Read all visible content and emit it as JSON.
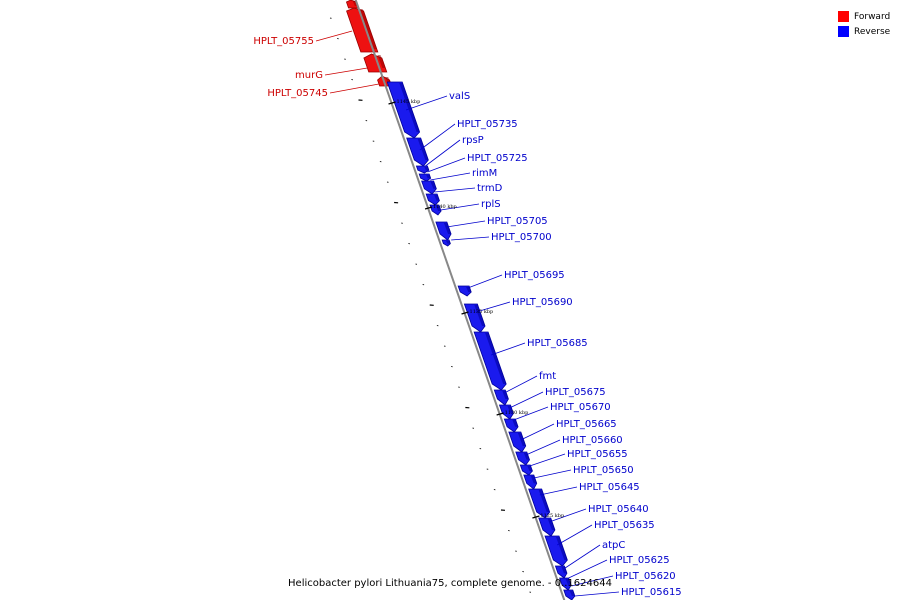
{
  "legend": {
    "forward": {
      "label": "Forward",
      "color": "#ff0000"
    },
    "reverse": {
      "label": "Reverse",
      "color": "#0000ff"
    }
  },
  "caption": "Helicobacter pylori Lithuania75, complete genome. - 0..1624644",
  "colors": {
    "forward_fill": "#ee1111",
    "forward_dark": "#990000",
    "reverse_fill": "#1a1aee",
    "reverse_dark": "#00009a",
    "forward_text": "#cc0000",
    "reverse_text": "#0000cc",
    "backbone": "#888888"
  },
  "ticks": [
    "1145 kbp",
    "1140 kbp",
    "1135 kbp",
    "1130 kbp",
    "1125 kbp"
  ],
  "genes": {
    "forward": [
      "HPLT_05755",
      "murG",
      "HPLT_05745"
    ],
    "reverse": [
      "valS",
      "HPLT_05735",
      "rpsP",
      "HPLT_05725",
      "rimM",
      "trmD",
      "rplS",
      "HPLT_05705",
      "HPLT_05700",
      "HPLT_05695",
      "HPLT_05690",
      "HPLT_05685",
      "fmt",
      "HPLT_05675",
      "HPLT_05670",
      "HPLT_05665",
      "HPLT_05660",
      "HPLT_05655",
      "HPLT_05650",
      "HPLT_05645",
      "HPLT_05640",
      "HPLT_05635",
      "atpC",
      "HPLT_05625",
      "HPLT_05620",
      "HPLT_05615"
    ]
  }
}
